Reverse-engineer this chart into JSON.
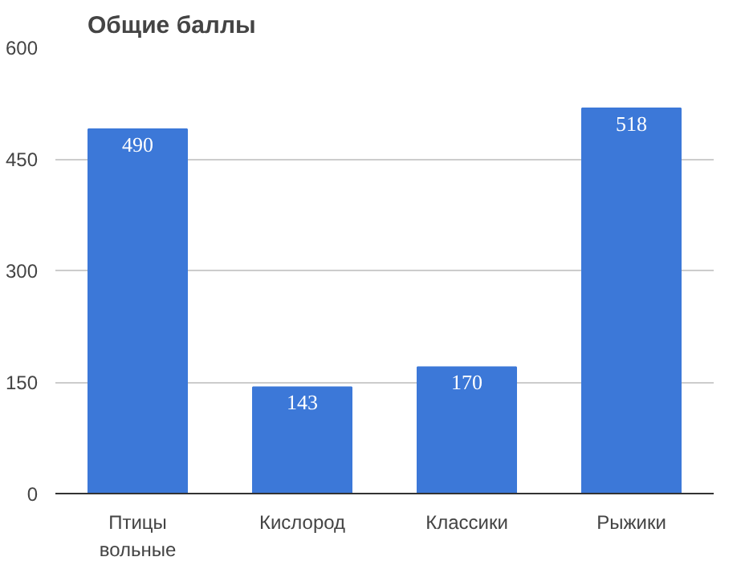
{
  "chart_data": {
    "type": "bar",
    "title": "Общие баллы",
    "categories": [
      "Птицы вольные",
      "Кислород",
      "Классики",
      "Рыжики"
    ],
    "values": [
      490,
      143,
      170,
      518
    ],
    "color": "#3c78d8",
    "ylim": [
      0,
      600
    ],
    "yticks": [
      0,
      150,
      300,
      450,
      600
    ],
    "grid": "y",
    "data_labels": true
  }
}
